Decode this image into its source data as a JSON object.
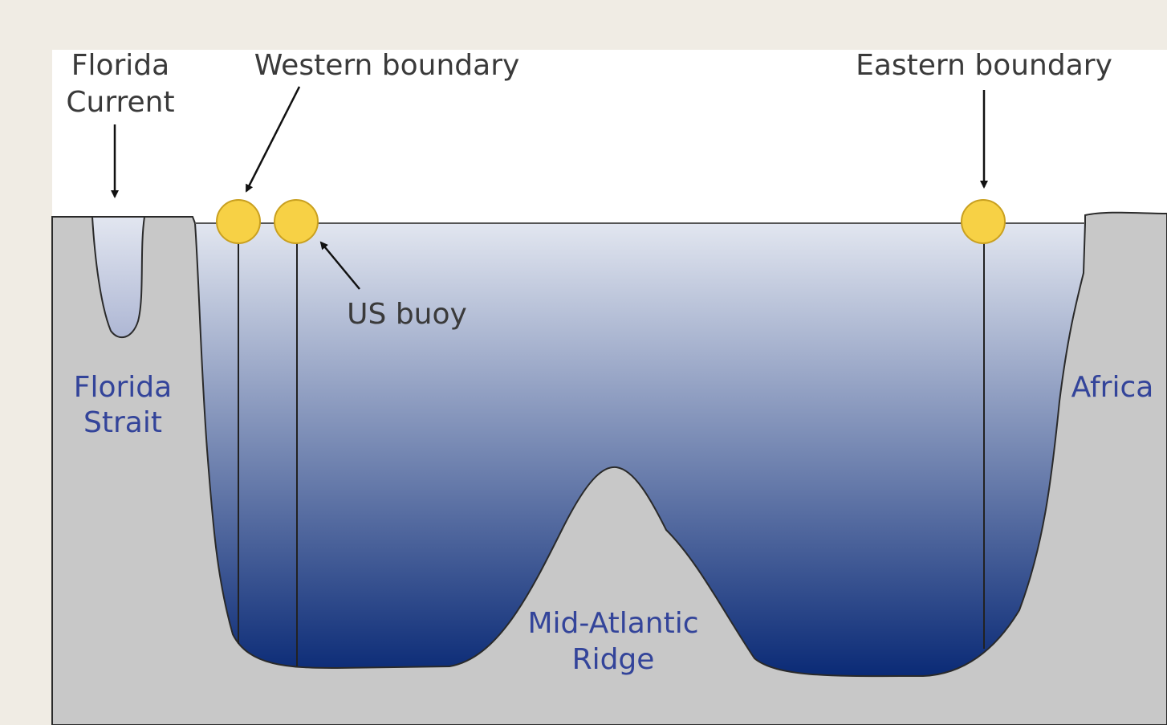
{
  "labels": {
    "florida_current": [
      "Florida",
      "Current"
    ],
    "western_boundary": "Western boundary",
    "eastern_boundary": "Eastern boundary",
    "us_buoy": "US buoy",
    "florida_strait": [
      "Florida",
      "Strait"
    ],
    "africa": "Africa",
    "mid_atlantic_ridge": [
      "Mid-Atlantic",
      "Ridge"
    ]
  }
}
